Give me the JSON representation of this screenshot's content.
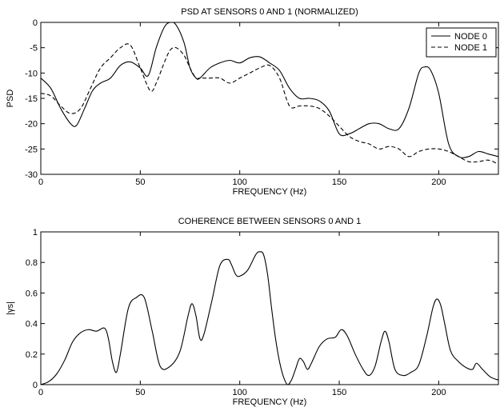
{
  "chart_data": [
    {
      "type": "line",
      "title": "PSD AT SENSORS 0 AND 1 (NORMALIZED)",
      "xlabel": "FREQUENCY (Hz)",
      "ylabel": "PSD",
      "xlim": [
        0,
        230
      ],
      "ylim": [
        -30,
        0
      ],
      "xticks": [
        0,
        50,
        100,
        150,
        200
      ],
      "yticks": [
        -30,
        -25,
        -20,
        -15,
        -10,
        -5,
        0
      ],
      "grid": false,
      "legend": "top-right",
      "series": [
        {
          "name": "NODE 0",
          "style": "solid",
          "color": "#000000",
          "x": [
            0,
            5,
            10,
            15,
            18,
            22,
            26,
            30,
            35,
            40,
            45,
            50,
            54,
            58,
            62,
            65,
            68,
            72,
            75,
            78,
            80,
            85,
            90,
            95,
            100,
            105,
            110,
            115,
            120,
            125,
            130,
            135,
            140,
            145,
            150,
            155,
            160,
            165,
            170,
            175,
            180,
            185,
            190,
            193,
            196,
            200,
            205,
            210,
            215,
            220,
            225,
            230
          ],
          "y": [
            -11,
            -13,
            -17,
            -20,
            -20.3,
            -17,
            -13.5,
            -12,
            -11,
            -8.5,
            -7.8,
            -9,
            -10.5,
            -5,
            -1,
            0,
            -0.5,
            -4,
            -9,
            -11,
            -11,
            -9,
            -8,
            -7.5,
            -8,
            -7,
            -6.8,
            -8,
            -9.5,
            -13,
            -15,
            -15,
            -15.5,
            -17.5,
            -22,
            -22,
            -21,
            -20,
            -20,
            -21,
            -21,
            -17,
            -10,
            -8.8,
            -9.5,
            -14,
            -24,
            -26.5,
            -26.5,
            -25.5,
            -26,
            -26.5
          ]
        },
        {
          "name": "NODE 1",
          "style": "dashed",
          "color": "#000000",
          "x": [
            0,
            5,
            10,
            15,
            20,
            25,
            30,
            35,
            40,
            45,
            50,
            55,
            58,
            62,
            65,
            68,
            72,
            75,
            78,
            80,
            85,
            90,
            95,
            100,
            105,
            110,
            115,
            120,
            125,
            130,
            135,
            140,
            145,
            150,
            155,
            160,
            165,
            170,
            175,
            180,
            185,
            190,
            195,
            200,
            205,
            210,
            215,
            220,
            225,
            230
          ],
          "y": [
            -14,
            -14.5,
            -16.5,
            -18,
            -17,
            -13,
            -9,
            -7,
            -5,
            -4.5,
            -9,
            -13.5,
            -12,
            -8,
            -5.5,
            -5,
            -6.5,
            -9,
            -11,
            -11,
            -11,
            -11,
            -12,
            -11,
            -10,
            -9,
            -8.5,
            -11,
            -16.5,
            -16.5,
            -16.5,
            -17,
            -18.5,
            -20.5,
            -22.5,
            -23.5,
            -24,
            -25,
            -24.5,
            -25,
            -26.5,
            -25.5,
            -25,
            -25,
            -25.5,
            -26.5,
            -27.5,
            -27.5,
            -27.2,
            -28
          ]
        }
      ]
    },
    {
      "type": "line",
      "title": "COHERENCE BETWEEN SENSORS 0 AND 1",
      "xlabel": "FREQUENCY (Hz)",
      "ylabel": "|γs|",
      "xlim": [
        0,
        230
      ],
      "ylim": [
        0,
        1
      ],
      "xticks": [
        0,
        50,
        100,
        150,
        200
      ],
      "yticks": [
        0,
        0.2,
        0.4,
        0.6,
        0.8,
        1
      ],
      "grid": false,
      "series": [
        {
          "style": "solid",
          "color": "#000000",
          "x": [
            0,
            4,
            8,
            12,
            16,
            20,
            24,
            28,
            32,
            34,
            36,
            38,
            40,
            44,
            48,
            52,
            56,
            60,
            65,
            70,
            74,
            76,
            78,
            80,
            82,
            86,
            90,
            94,
            96,
            98,
            100,
            104,
            108,
            110,
            112,
            114,
            116,
            118,
            120,
            122,
            124,
            126,
            128,
            130,
            132,
            134,
            136,
            140,
            144,
            148,
            151,
            154,
            158,
            162,
            165,
            168,
            171,
            173,
            175,
            178,
            182,
            186,
            190,
            194,
            197,
            199,
            201,
            203,
            206,
            210,
            214,
            217,
            219,
            222,
            226,
            230
          ],
          "y": [
            0,
            0.02,
            0.07,
            0.16,
            0.28,
            0.34,
            0.36,
            0.35,
            0.37,
            0.3,
            0.15,
            0.08,
            0.2,
            0.5,
            0.57,
            0.57,
            0.35,
            0.12,
            0.12,
            0.22,
            0.45,
            0.53,
            0.45,
            0.3,
            0.33,
            0.55,
            0.78,
            0.82,
            0.78,
            0.72,
            0.71,
            0.75,
            0.85,
            0.87,
            0.85,
            0.72,
            0.5,
            0.3,
            0.15,
            0.05,
            0,
            0.03,
            0.1,
            0.17,
            0.15,
            0.1,
            0.14,
            0.25,
            0.3,
            0.31,
            0.36,
            0.32,
            0.2,
            0.1,
            0.06,
            0.12,
            0.28,
            0.35,
            0.28,
            0.1,
            0.06,
            0.08,
            0.13,
            0.32,
            0.5,
            0.56,
            0.52,
            0.4,
            0.22,
            0.15,
            0.11,
            0.1,
            0.14,
            0.1,
            0.05,
            0.03
          ]
        }
      ]
    }
  ]
}
